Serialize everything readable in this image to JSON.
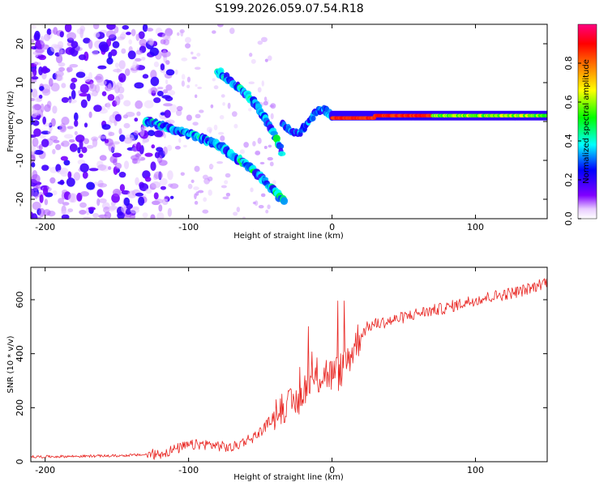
{
  "title": "S199.2026.059.07.54.R18",
  "colors": {
    "snr_line": "#e8231f",
    "axis": "#000000",
    "background": "#ffffff"
  },
  "chart_data": [
    {
      "type": "heatmap",
      "name": "spectrogram",
      "xlabel": "Height of straight line (km)",
      "ylabel": "Frequency (Hz)",
      "xlim": [
        -210,
        150
      ],
      "ylim": [
        -25,
        25
      ],
      "xticks": [
        -200,
        -100,
        0,
        100
      ],
      "yticks": [
        -20,
        -10,
        0,
        10,
        20
      ],
      "colorbar": {
        "label": "Normalized spectral amplitude",
        "range": [
          0,
          1
        ],
        "ticks": [
          "0.0",
          "0.2",
          "0.4",
          "0.6",
          "0.8"
        ],
        "colormap": "rainbow (violet→blue→cyan→green→yellow→orange→red→pink)"
      },
      "features": [
        {
          "name": "carrier",
          "x_range": [
            0,
            150
          ],
          "frequency_hz": 1.5,
          "amplitude": "high (0.6–1.0)"
        },
        {
          "name": "upper fringe",
          "points": [
            [
              -80,
              13
            ],
            [
              -65,
              9
            ],
            [
              -52,
              4
            ],
            [
              -42,
              -2
            ],
            [
              -35,
              -8
            ]
          ]
        },
        {
          "name": "lower fringe",
          "points": [
            [
              -130,
              0
            ],
            [
              -100,
              -3
            ],
            [
              -80,
              -6
            ],
            [
              -60,
              -11
            ],
            [
              -45,
              -16
            ],
            [
              -33,
              -21
            ]
          ]
        },
        {
          "name": "noise floor",
          "x_range": [
            -210,
            -120
          ],
          "amplitude": "low (0.1–0.3)"
        }
      ]
    },
    {
      "type": "line",
      "name": "snr",
      "xlabel": "Height of straight line (km)",
      "ylabel": "SNR (10 * v/v)",
      "xlim": [
        -210,
        150
      ],
      "ylim": [
        0,
        720
      ],
      "xticks": [
        -200,
        -100,
        0,
        100
      ],
      "yticks": [
        0,
        200,
        400,
        600
      ],
      "series": [
        {
          "name": "SNR",
          "x": [
            -210,
            -180,
            -150,
            -120,
            -110,
            -100,
            -90,
            -80,
            -70,
            -60,
            -55,
            -50,
            -45,
            -40,
            -35,
            -30,
            -25,
            -22,
            -20,
            -15,
            -10,
            -5,
            0,
            5,
            10,
            15,
            20,
            25,
            30,
            40,
            50,
            60,
            70,
            80,
            90,
            100,
            110,
            120,
            130,
            140,
            150
          ],
          "y": [
            18,
            20,
            22,
            28,
            45,
            60,
            65,
            60,
            50,
            80,
            90,
            110,
            140,
            170,
            200,
            210,
            220,
            230,
            270,
            290,
            310,
            330,
            320,
            330,
            370,
            420,
            470,
            500,
            510,
            520,
            535,
            550,
            560,
            570,
            585,
            600,
            610,
            620,
            630,
            645,
            670
          ]
        }
      ]
    }
  ]
}
